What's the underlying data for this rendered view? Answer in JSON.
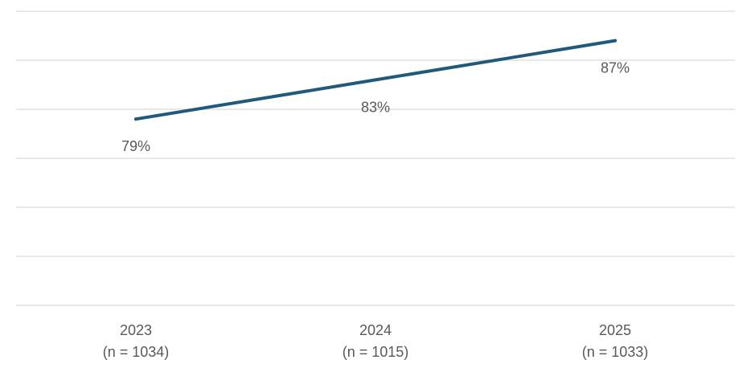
{
  "chart_data": {
    "type": "line",
    "categories": [
      "2023",
      "2024",
      "2025"
    ],
    "category_sublabels": [
      "(n = 1034)",
      "(n = 1015)",
      "(n = 1033)"
    ],
    "series": [
      {
        "values": [
          79,
          83,
          87
        ],
        "data_labels": [
          "79%",
          "83%",
          "87%"
        ]
      }
    ],
    "title": "",
    "xlabel": "",
    "ylabel": "",
    "ylim": [
      60,
      90
    ],
    "gridlines": true,
    "y_tick_labels_shown": false,
    "legend": "none",
    "line_color": "#1f5a7a"
  }
}
